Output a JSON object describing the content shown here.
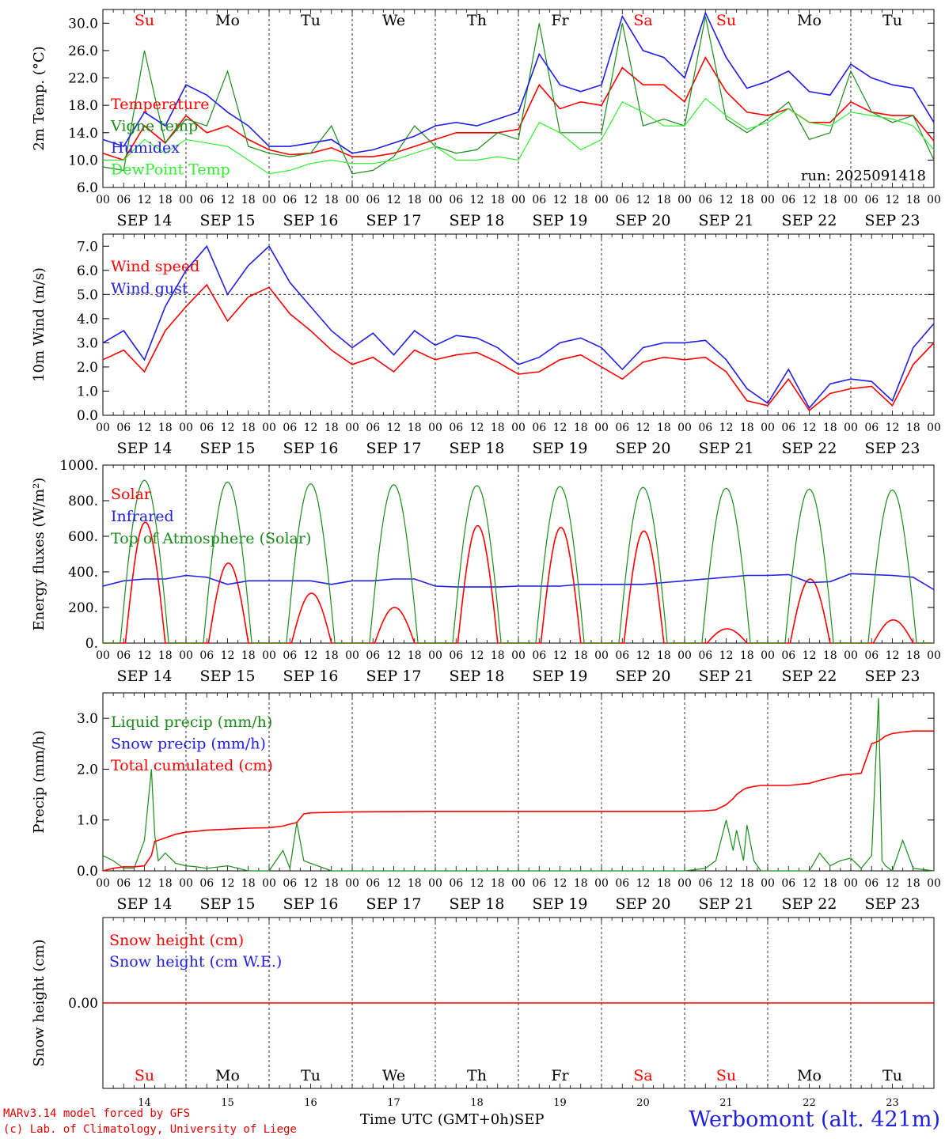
{
  "footer": {
    "credit_line1": "MARv3.14 model forced by GFS",
    "credit_line2": "(c) Lab. of Climatology, University of Liege",
    "axis_label": "Time UTC (GMT+0h)",
    "axis_month": "SEP",
    "station": "Werbomont (alt. 421m)"
  },
  "colors": {
    "red": "#ff0000",
    "green": "#1a8c1a",
    "blue": "#1f1fe8",
    "lightgreen": "#33ee33",
    "black": "#000000"
  },
  "chart_data": [
    {
      "type": "line",
      "title": "",
      "ylabel": "2m Temp. (°C)",
      "ylim": [
        6.0,
        32.0
      ],
      "yticks": [
        "6.0",
        "10.0",
        "14.0",
        "18.0",
        "22.0",
        "26.0",
        "30.0"
      ],
      "day_labels": [
        "Su",
        "Mo",
        "Tu",
        "We",
        "Th",
        "Fr",
        "Sa",
        "Su",
        "Mo",
        "Tu"
      ],
      "day_label_colors": [
        "red",
        "black",
        "black",
        "black",
        "black",
        "black",
        "red",
        "red",
        "black",
        "black"
      ],
      "date_labels": [
        "SEP 14",
        "SEP 15",
        "SEP 16",
        "SEP 17",
        "SEP 18",
        "SEP 19",
        "SEP 20",
        "SEP 21",
        "SEP 22",
        "SEP 23"
      ],
      "hour_labels": [
        "00",
        "06",
        "12",
        "18"
      ],
      "annotation": "run: 2025091418",
      "x_hours": [
        0,
        6,
        12,
        18,
        24,
        30,
        36,
        42,
        48,
        54,
        60,
        66,
        72,
        78,
        84,
        90,
        96,
        102,
        108,
        114,
        120,
        126,
        132,
        138,
        144,
        150,
        156,
        162,
        168,
        174,
        180,
        186,
        192,
        198,
        204,
        210,
        216,
        222,
        228,
        234,
        240
      ],
      "series": [
        {
          "name": "Temperature",
          "color": "red",
          "values": [
            11.0,
            10.0,
            15.0,
            12.5,
            16.5,
            14.0,
            15.0,
            13.0,
            11.5,
            10.8,
            11.0,
            11.8,
            10.5,
            10.5,
            11.0,
            12.0,
            13.0,
            14.0,
            14.0,
            14.0,
            14.5,
            21.0,
            17.5,
            18.5,
            18.0,
            23.5,
            21.0,
            21.0,
            18.5,
            25.0,
            20.0,
            17.0,
            16.5,
            17.5,
            15.5,
            15.5,
            18.5,
            17.0,
            16.5,
            16.5,
            12.8
          ]
        },
        {
          "name": "Vigne temp",
          "color": "green",
          "values": [
            9.0,
            8.5,
            26.0,
            12.5,
            16.0,
            15.0,
            23.0,
            12.0,
            11.0,
            10.5,
            11.0,
            15.0,
            8.0,
            8.5,
            10.5,
            15.0,
            12.0,
            11.0,
            11.5,
            14.0,
            13.0,
            30.0,
            14.0,
            14.0,
            14.0,
            30.0,
            15.0,
            16.0,
            15.0,
            31.0,
            16.0,
            14.0,
            16.0,
            18.5,
            13.0,
            14.0,
            23.0,
            17.0,
            15.5,
            16.5,
            10.0
          ]
        },
        {
          "name": "Humidex",
          "color": "blue",
          "values": [
            13.0,
            12.0,
            17.0,
            15.0,
            21.0,
            19.5,
            17.0,
            15.0,
            12.0,
            12.0,
            12.5,
            13.0,
            11.0,
            11.5,
            12.5,
            13.5,
            15.0,
            15.5,
            15.0,
            16.0,
            17.0,
            25.5,
            21.0,
            20.0,
            21.0,
            31.0,
            26.0,
            25.0,
            22.0,
            31.5,
            25.0,
            20.5,
            21.5,
            23.0,
            20.0,
            19.5,
            24.0,
            22.0,
            21.0,
            20.5,
            15.5
          ]
        },
        {
          "name": "DewPoint Temp",
          "color": "lightgreen",
          "values": [
            10.0,
            10.0,
            13.0,
            11.0,
            13.0,
            12.5,
            12.0,
            10.0,
            8.0,
            8.5,
            9.5,
            10.0,
            9.5,
            9.5,
            10.0,
            11.0,
            12.0,
            10.0,
            10.0,
            10.5,
            10.0,
            15.5,
            14.0,
            11.5,
            13.0,
            18.5,
            17.0,
            15.0,
            15.0,
            19.0,
            16.5,
            14.5,
            15.5,
            17.5,
            15.5,
            15.0,
            17.0,
            16.5,
            16.0,
            15.0,
            11.5
          ]
        }
      ]
    },
    {
      "type": "line",
      "title": "",
      "ylabel": "10m Wind (m/s)",
      "ylim": [
        0.0,
        7.5
      ],
      "yticks": [
        "0.0",
        "1.0",
        "2.0",
        "3.0",
        "4.0",
        "5.0",
        "6.0",
        "7.0"
      ],
      "reference_line": 5.0,
      "date_labels": [
        "SEP 14",
        "SEP 15",
        "SEP 16",
        "SEP 17",
        "SEP 18",
        "SEP 19",
        "SEP 20",
        "SEP 21",
        "SEP 22",
        "SEP 23"
      ],
      "hour_labels": [
        "00",
        "06",
        "12",
        "18"
      ],
      "x_hours": [
        0,
        6,
        12,
        18,
        24,
        30,
        36,
        42,
        48,
        54,
        60,
        66,
        72,
        78,
        84,
        90,
        96,
        102,
        108,
        114,
        120,
        126,
        132,
        138,
        144,
        150,
        156,
        162,
        168,
        174,
        180,
        186,
        192,
        198,
        204,
        210,
        216,
        222,
        228,
        234,
        240
      ],
      "series": [
        {
          "name": "Wind speed",
          "color": "red",
          "values": [
            2.3,
            2.7,
            1.8,
            3.5,
            4.5,
            5.4,
            3.9,
            4.9,
            5.3,
            4.2,
            3.5,
            2.7,
            2.1,
            2.4,
            1.8,
            2.7,
            2.3,
            2.5,
            2.6,
            2.2,
            1.7,
            1.8,
            2.3,
            2.5,
            2.0,
            1.5,
            2.2,
            2.4,
            2.3,
            2.4,
            1.8,
            0.6,
            0.4,
            1.5,
            0.2,
            0.9,
            1.1,
            1.2,
            0.4,
            2.1,
            3.0
          ]
        },
        {
          "name": "Wind gust",
          "color": "blue",
          "values": [
            3.0,
            3.5,
            2.3,
            4.5,
            6.0,
            7.0,
            5.0,
            6.2,
            7.0,
            5.5,
            4.5,
            3.5,
            2.8,
            3.4,
            2.5,
            3.5,
            2.9,
            3.3,
            3.2,
            2.8,
            2.1,
            2.4,
            3.0,
            3.2,
            2.8,
            1.9,
            2.8,
            3.0,
            3.0,
            3.1,
            2.3,
            1.1,
            0.5,
            1.9,
            0.3,
            1.3,
            1.5,
            1.4,
            0.6,
            2.8,
            3.8
          ]
        }
      ]
    },
    {
      "type": "line",
      "title": "",
      "ylabel": "Energy fluxes (W/m²)",
      "ylim": [
        0,
        1000
      ],
      "yticks": [
        "0.",
        "200.",
        "400.",
        "600.",
        "800.",
        "1000."
      ],
      "date_labels": [
        "SEP 14",
        "SEP 15",
        "SEP 16",
        "SEP 17",
        "SEP 18",
        "SEP 19",
        "SEP 20",
        "SEP 21",
        "SEP 22",
        "SEP 23"
      ],
      "hour_labels": [
        "00",
        "06",
        "12",
        "18"
      ],
      "solar_peaks": [
        680,
        450,
        280,
        200,
        660,
        650,
        630,
        80,
        360,
        130
      ],
      "toa_peaks": [
        915,
        905,
        895,
        890,
        885,
        880,
        875,
        870,
        865,
        860
      ],
      "x_hours": [
        0,
        6,
        12,
        18,
        24,
        30,
        36,
        42,
        48,
        54,
        60,
        66,
        72,
        78,
        84,
        90,
        96,
        102,
        108,
        114,
        120,
        126,
        132,
        138,
        144,
        150,
        156,
        162,
        168,
        174,
        180,
        186,
        192,
        198,
        204,
        210,
        216,
        222,
        228,
        234,
        240
      ],
      "series": [
        {
          "name": "Solar",
          "color": "red",
          "values": []
        },
        {
          "name": "Infrared",
          "color": "blue",
          "values": [
            320,
            350,
            360,
            360,
            380,
            370,
            330,
            350,
            350,
            350,
            350,
            330,
            350,
            350,
            360,
            360,
            320,
            315,
            315,
            315,
            320,
            320,
            320,
            330,
            330,
            330,
            330,
            340,
            350,
            360,
            370,
            380,
            380,
            385,
            340,
            345,
            390,
            385,
            380,
            370,
            300
          ]
        },
        {
          "name": "Top of Atmosphere (Solar)",
          "color": "green",
          "values": []
        }
      ]
    },
    {
      "type": "line",
      "title": "",
      "ylabel": "Precip (mm/h)",
      "ylim": [
        0.0,
        3.5
      ],
      "yticks": [
        "0.0",
        "1.0",
        "2.0",
        "3.0"
      ],
      "date_labels": [
        "SEP 14",
        "SEP 15",
        "SEP 16",
        "SEP 17",
        "SEP 18",
        "SEP 19",
        "SEP 20",
        "SEP 21",
        "SEP 22",
        "SEP 23"
      ],
      "hour_labels": [
        "00",
        "06",
        "12",
        "18"
      ],
      "x_hours": [
        0,
        3,
        6,
        9,
        12,
        14,
        15,
        16,
        18,
        21,
        24,
        27,
        30,
        36,
        42,
        48,
        52,
        54,
        56,
        58,
        60,
        66,
        72,
        96,
        120,
        144,
        168,
        174,
        177,
        180,
        182,
        183,
        185,
        186,
        188,
        190,
        192,
        198,
        204,
        207,
        210,
        213,
        216,
        219,
        222,
        224,
        225,
        226,
        228,
        231,
        234,
        240
      ],
      "series": [
        {
          "name": "Liquid precip (mm/h)",
          "color": "green",
          "values": [
            0.3,
            0.2,
            0.05,
            0.05,
            0.6,
            2.0,
            0.7,
            0.2,
            0.35,
            0.15,
            0.1,
            0.08,
            0.05,
            0.1,
            0.0,
            0.0,
            0.4,
            0.05,
            0.95,
            0.2,
            0.15,
            0.0,
            0.0,
            0.0,
            0.0,
            0.0,
            0.0,
            0.05,
            0.2,
            1.0,
            0.4,
            0.8,
            0.2,
            0.9,
            0.2,
            0.0,
            0.0,
            0.0,
            0.0,
            0.35,
            0.1,
            0.2,
            0.25,
            0.05,
            0.3,
            3.4,
            0.2,
            0.1,
            0.0,
            0.6,
            0.05,
            0.0
          ]
        },
        {
          "name": "Snow precip (mm/h)",
          "color": "blue",
          "values": []
        },
        {
          "name": "Total cumulated (cm)",
          "color": "red",
          "values": [
            0.0,
            0.05,
            0.08,
            0.08,
            0.1,
            0.3,
            0.58,
            0.6,
            0.65,
            0.72,
            0.76,
            0.78,
            0.8,
            0.82,
            0.84,
            0.85,
            0.88,
            0.92,
            0.95,
            1.12,
            1.14,
            1.15,
            1.16,
            1.17,
            1.17,
            1.17,
            1.17,
            1.18,
            1.2,
            1.3,
            1.42,
            1.5,
            1.6,
            1.63,
            1.66,
            1.68,
            1.68,
            1.68,
            1.72,
            1.78,
            1.83,
            1.88,
            1.9,
            1.92,
            2.5,
            2.55,
            2.6,
            2.65,
            2.7,
            2.73,
            2.75,
            2.75
          ]
        }
      ]
    },
    {
      "type": "line",
      "title": "",
      "ylabel": "Snow height (cm)",
      "ylim": [
        -1.0,
        1.0
      ],
      "yticks": [
        "0.00"
      ],
      "day_labels": [
        "Su",
        "Mo",
        "Tu",
        "We",
        "Th",
        "Fr",
        "Sa",
        "Su",
        "Mo",
        "Tu"
      ],
      "day_label_colors": [
        "red",
        "black",
        "black",
        "black",
        "black",
        "black",
        "red",
        "red",
        "black",
        "black"
      ],
      "day_numbers": [
        "14",
        "15",
        "16",
        "17",
        "18",
        "19",
        "20",
        "21",
        "22",
        "23"
      ],
      "x_hours": [
        0,
        240
      ],
      "series": [
        {
          "name": "Snow height (cm)",
          "color": "red",
          "values": [
            0.0,
            0.0
          ]
        },
        {
          "name": "Snow height (cm W.E.)",
          "color": "blue",
          "values": []
        }
      ]
    }
  ]
}
